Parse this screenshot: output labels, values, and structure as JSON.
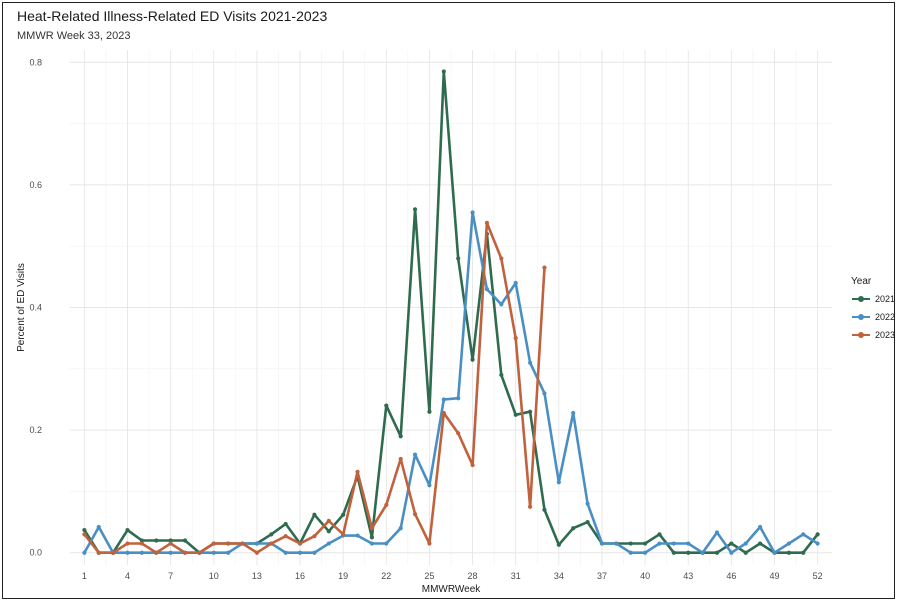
{
  "chart_data": {
    "type": "line",
    "title": "Heat-Related Illness-Related ED Visits 2021-2023",
    "subtitle": "MMWR Week 33, 2023",
    "xlabel": "MMWRWeek",
    "ylabel": "Percent of ED Visits",
    "xlim": [
      0,
      53
    ],
    "ylim": [
      -0.02,
      0.82
    ],
    "x_ticks": [
      1,
      4,
      7,
      10,
      13,
      16,
      19,
      22,
      25,
      28,
      31,
      34,
      37,
      40,
      43,
      46,
      49,
      52
    ],
    "y_ticks": [
      0.0,
      0.2,
      0.4,
      0.6,
      0.8
    ],
    "y_tick_labels": [
      "0.0",
      "0.2",
      "0.4",
      "0.6",
      "0.8"
    ],
    "grid": true,
    "legend": {
      "title": "Year",
      "position": "right"
    },
    "series": [
      {
        "name": "2021",
        "color": "#2f6b4f",
        "x": [
          1,
          2,
          3,
          4,
          5,
          6,
          7,
          8,
          9,
          10,
          11,
          12,
          13,
          14,
          15,
          16,
          17,
          18,
          19,
          20,
          21,
          22,
          23,
          24,
          25,
          26,
          27,
          28,
          29,
          30,
          31,
          32,
          33,
          34,
          35,
          36,
          37,
          38,
          39,
          40,
          41,
          42,
          43,
          44,
          45,
          46,
          47,
          48,
          49,
          50,
          51,
          52
        ],
        "values": [
          0.037,
          0.0,
          0.0,
          0.037,
          0.02,
          0.02,
          0.02,
          0.02,
          0.0,
          0.015,
          0.015,
          0.015,
          0.015,
          0.03,
          0.047,
          0.015,
          0.062,
          0.035,
          0.062,
          0.125,
          0.025,
          0.24,
          0.19,
          0.56,
          0.23,
          0.785,
          0.48,
          0.315,
          0.52,
          0.29,
          0.225,
          0.23,
          0.07,
          0.013,
          0.04,
          0.05,
          0.015,
          0.015,
          0.015,
          0.015,
          0.03,
          0.0,
          0.0,
          0.0,
          0.0,
          0.015,
          0.0,
          0.015,
          0.0,
          0.0,
          0.0,
          0.03
        ]
      },
      {
        "name": "2022",
        "color": "#4a8fc4",
        "x": [
          1,
          2,
          3,
          4,
          5,
          6,
          7,
          8,
          9,
          10,
          11,
          12,
          13,
          14,
          15,
          16,
          17,
          18,
          19,
          20,
          21,
          22,
          23,
          24,
          25,
          26,
          27,
          28,
          29,
          30,
          31,
          32,
          33,
          34,
          35,
          36,
          37,
          38,
          39,
          40,
          41,
          42,
          43,
          44,
          45,
          46,
          47,
          48,
          49,
          50,
          51,
          52
        ],
        "values": [
          0.0,
          0.042,
          0.0,
          0.0,
          0.0,
          0.0,
          0.0,
          0.0,
          0.0,
          0.0,
          0.0,
          0.015,
          0.015,
          0.015,
          0.0,
          0.0,
          0.0,
          0.015,
          0.028,
          0.028,
          0.015,
          0.015,
          0.04,
          0.16,
          0.11,
          0.25,
          0.252,
          0.555,
          0.43,
          0.405,
          0.44,
          0.31,
          0.26,
          0.115,
          0.228,
          0.08,
          0.015,
          0.015,
          0.0,
          0.0,
          0.015,
          0.015,
          0.015,
          0.0,
          0.033,
          0.0,
          0.015,
          0.042,
          0.0,
          0.015,
          0.03,
          0.015
        ]
      },
      {
        "name": "2023",
        "color": "#c0623d",
        "x": [
          1,
          2,
          3,
          4,
          5,
          6,
          7,
          8,
          9,
          10,
          11,
          12,
          13,
          14,
          15,
          16,
          17,
          18,
          19,
          20,
          21,
          22,
          23,
          24,
          25,
          26,
          27,
          28,
          29,
          30,
          31,
          32,
          33
        ],
        "values": [
          0.03,
          0.0,
          0.0,
          0.015,
          0.015,
          0.0,
          0.015,
          0.0,
          0.0,
          0.015,
          0.015,
          0.015,
          0.0,
          0.015,
          0.027,
          0.015,
          0.027,
          0.052,
          0.03,
          0.132,
          0.04,
          0.078,
          0.153,
          0.063,
          0.015,
          0.228,
          0.195,
          0.143,
          0.538,
          0.48,
          0.35,
          0.075,
          0.465
        ]
      }
    ]
  }
}
